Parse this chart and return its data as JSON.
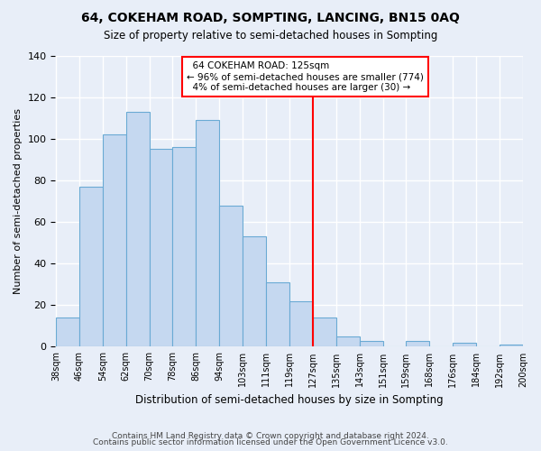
{
  "title": "64, COKEHAM ROAD, SOMPTING, LANCING, BN15 0AQ",
  "subtitle": "Size of property relative to semi-detached houses in Sompting",
  "xlabel": "Distribution of semi-detached houses by size in Sompting",
  "ylabel": "Number of semi-detached properties",
  "bar_labels": [
    "38sqm",
    "46sqm",
    "54sqm",
    "62sqm",
    "70sqm",
    "78sqm",
    "86sqm",
    "94sqm",
    "103sqm",
    "111sqm",
    "119sqm",
    "127sqm",
    "135sqm",
    "143sqm",
    "151sqm",
    "159sqm",
    "168sqm",
    "176sqm",
    "184sqm",
    "192sqm",
    "200sqm"
  ],
  "bar_heights": [
    14,
    77,
    102,
    113,
    95,
    96,
    109,
    68,
    53,
    31,
    22,
    14,
    5,
    3,
    0,
    3,
    0,
    2,
    0,
    1
  ],
  "bar_color": "#c5d8f0",
  "bar_edge_color": "#6aaad4",
  "vline_color": "red",
  "vline_position": 11,
  "annotation_title": "64 COKEHAM ROAD: 125sqm",
  "annotation_line1": "← 96% of semi-detached houses are smaller (774)",
  "annotation_line2": "4% of semi-detached houses are larger (30) →",
  "annotation_box_edge": "red",
  "footer1": "Contains HM Land Registry data © Crown copyright and database right 2024.",
  "footer2": "Contains public sector information licensed under the Open Government Licence v3.0.",
  "ylim": [
    0,
    140
  ],
  "yticks": [
    0,
    20,
    40,
    60,
    80,
    100,
    120,
    140
  ],
  "background_color": "#e8eef8",
  "grid_color": "white"
}
